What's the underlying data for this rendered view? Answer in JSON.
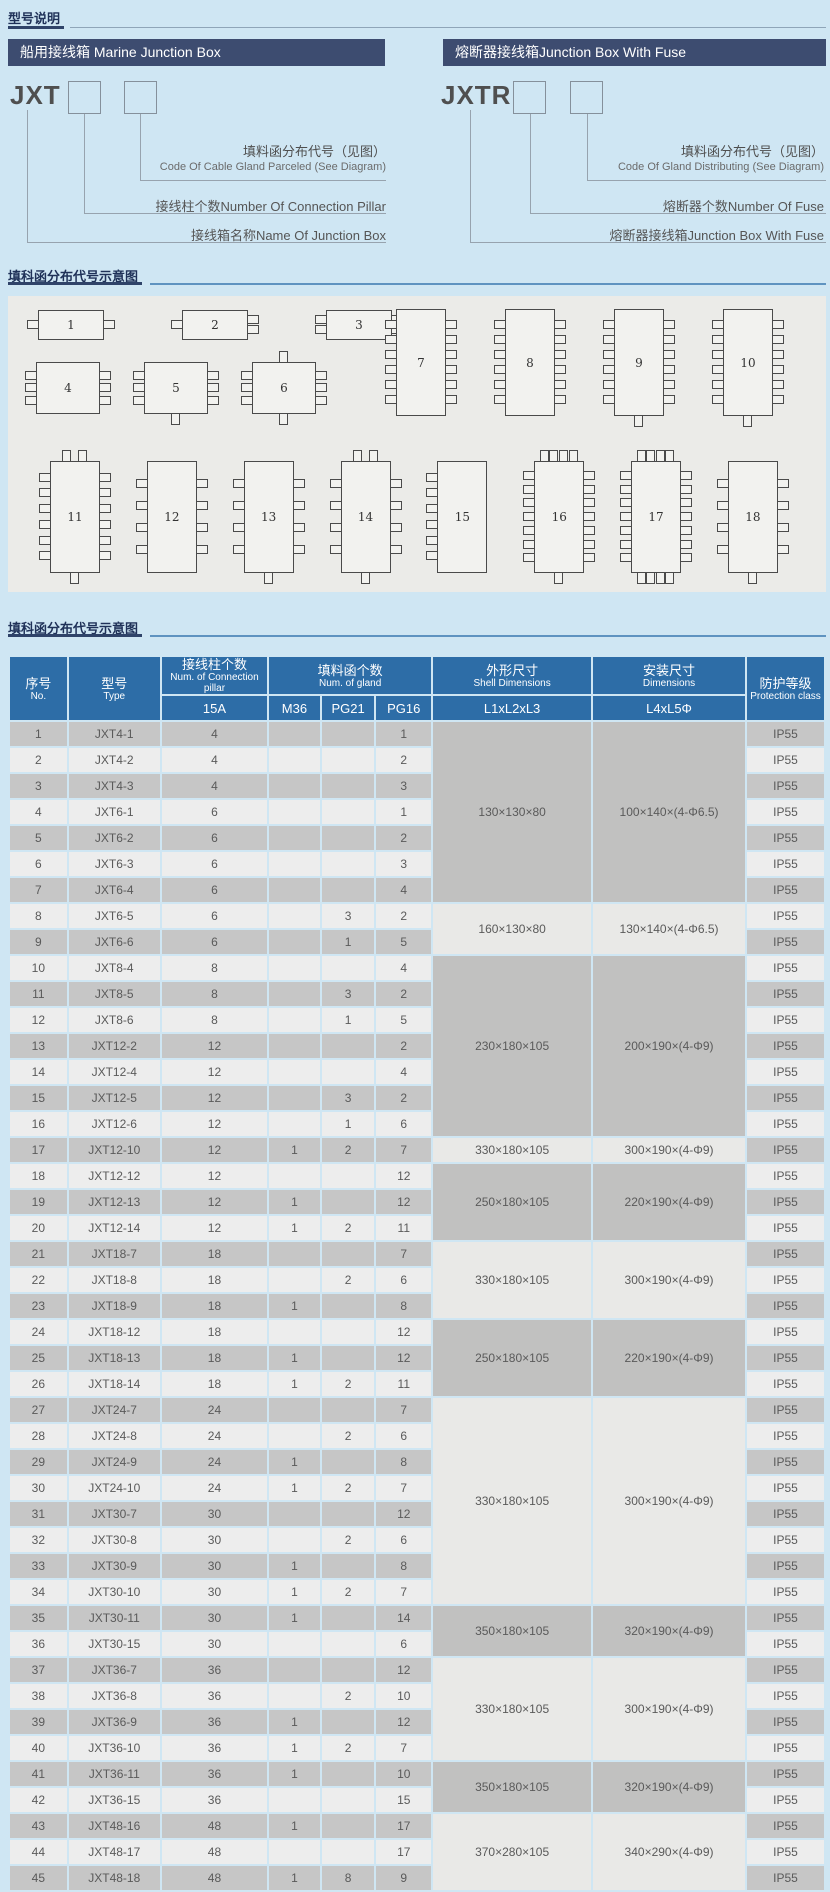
{
  "colors": {
    "page_bg": "#cfe6f3",
    "bar_navy": "#3d4c70",
    "header_blue": "#2d6da7",
    "row_odd": "#c6c6c6",
    "row_even": "#ededed",
    "block_dark": "#c1c1c0",
    "block_light": "#e9e9e7",
    "panel_gray": "#ebebe8"
  },
  "sections": {
    "model_title": "型号说明",
    "diagram_title": "填科函分布代号示意图",
    "table_title": "填科函分布代号示意图"
  },
  "marine": {
    "header": "船用接线箱 Marine Junction Box",
    "code": "JXT",
    "label1_zh": "填料函分布代号（见图）",
    "label1_en": "Code Of Cable Gland Parceled (See Diagram)",
    "label2": "接线柱个数Number Of Connection Pillar",
    "label3": "接线箱名称Name Of Junction Box"
  },
  "fuse": {
    "header": "熔断器接线箱Junction Box With Fuse",
    "code": "JXTR",
    "label1_zh": "填料函分布代号（见图）",
    "label1_en": "Code Of Gland Distributing (See Diagram)",
    "label2": "熔断器个数Number Of Fuse",
    "label3": "熔断器接线箱Junction Box With Fuse"
  },
  "diagrams": [
    {
      "n": "1",
      "size": "s",
      "l": 1,
      "r": 1,
      "t": 0,
      "b": 0
    },
    {
      "n": "2",
      "size": "s",
      "l": 1,
      "r": 2,
      "t": 0,
      "b": 0
    },
    {
      "n": "3",
      "size": "s",
      "l": 2,
      "r": 2,
      "t": 0,
      "b": 0
    },
    {
      "n": "4",
      "size": "m",
      "l": 3,
      "r": 3,
      "t": 0,
      "b": 0
    },
    {
      "n": "5",
      "size": "m",
      "l": 3,
      "r": 3,
      "t": 0,
      "b": 1
    },
    {
      "n": "6",
      "size": "m",
      "l": 3,
      "r": 3,
      "t": 1,
      "b": 1
    },
    {
      "n": "7",
      "size": "t",
      "l": 6,
      "r": 6,
      "t": 0,
      "b": 0
    },
    {
      "n": "8",
      "size": "t",
      "l": 6,
      "r": 6,
      "t": 0,
      "b": 0
    },
    {
      "n": "9",
      "size": "t",
      "l": 6,
      "r": 6,
      "t": 0,
      "b": 1
    },
    {
      "n": "10",
      "size": "t",
      "l": 6,
      "r": 6,
      "t": 0,
      "b": 1
    },
    {
      "n": "11",
      "size": "v",
      "l": 6,
      "r": 6,
      "t": 2,
      "b": 1
    },
    {
      "n": "12",
      "size": "v",
      "l": 4,
      "r": 4,
      "t": 0,
      "b": 0
    },
    {
      "n": "13",
      "size": "v",
      "l": 4,
      "r": 4,
      "t": 0,
      "b": 1
    },
    {
      "n": "14",
      "size": "v",
      "l": 4,
      "r": 4,
      "t": 2,
      "b": 1
    },
    {
      "n": "15",
      "size": "v",
      "l": 6,
      "r": 0,
      "t": 0,
      "b": 0
    },
    {
      "n": "16",
      "size": "v",
      "l": 7,
      "r": 7,
      "t": 4,
      "b": 1
    },
    {
      "n": "17",
      "size": "v",
      "l": 7,
      "r": 7,
      "t": 4,
      "b": 4
    },
    {
      "n": "18",
      "size": "v",
      "l": 4,
      "r": 4,
      "t": 0,
      "b": 1
    }
  ],
  "table": {
    "header": {
      "no_zh": "序号",
      "no_en": "No.",
      "type_zh": "型号",
      "type_en": "Type",
      "pillar_zh": "接线柱个数",
      "pillar_en": "Num. of Connection pillar",
      "pillar_sub": "15A",
      "gland_zh": "填料函个数",
      "gland_en": "Num. of gland",
      "gland_subs": [
        "M36",
        "PG21",
        "PG16"
      ],
      "shell_zh": "外形尺寸",
      "shell_en": "Shell Dimensions",
      "shell_sub": "L1xL2xL3",
      "mount_zh": "安装尺寸",
      "mount_en": "Dimensions",
      "mount_sub": "L4xL5Φ",
      "prot_zh": "防护等级",
      "prot_en": "Protection class"
    },
    "rows": [
      [
        "1",
        "JXT4-1",
        "4",
        "",
        "",
        "1",
        "IP55"
      ],
      [
        "2",
        "JXT4-2",
        "4",
        "",
        "",
        "2",
        "IP55"
      ],
      [
        "3",
        "JXT4-3",
        "4",
        "",
        "",
        "3",
        "IP55"
      ],
      [
        "4",
        "JXT6-1",
        "6",
        "",
        "",
        "1",
        "IP55"
      ],
      [
        "5",
        "JXT6-2",
        "6",
        "",
        "",
        "2",
        "IP55"
      ],
      [
        "6",
        "JXT6-3",
        "6",
        "",
        "",
        "3",
        "IP55"
      ],
      [
        "7",
        "JXT6-4",
        "6",
        "",
        "",
        "4",
        "IP55"
      ],
      [
        "8",
        "JXT6-5",
        "6",
        "",
        "3",
        "2",
        "IP55"
      ],
      [
        "9",
        "JXT6-6",
        "6",
        "",
        "1",
        "5",
        "IP55"
      ],
      [
        "10",
        "JXT8-4",
        "8",
        "",
        "",
        "4",
        "IP55"
      ],
      [
        "11",
        "JXT8-5",
        "8",
        "",
        "3",
        "2",
        "IP55"
      ],
      [
        "12",
        "JXT8-6",
        "8",
        "",
        "1",
        "5",
        "IP55"
      ],
      [
        "13",
        "JXT12-2",
        "12",
        "",
        "",
        "2",
        "IP55"
      ],
      [
        "14",
        "JXT12-4",
        "12",
        "",
        "",
        "4",
        "IP55"
      ],
      [
        "15",
        "JXT12-5",
        "12",
        "",
        "3",
        "2",
        "IP55"
      ],
      [
        "16",
        "JXT12-6",
        "12",
        "",
        "1",
        "6",
        "IP55"
      ],
      [
        "17",
        "JXT12-10",
        "12",
        "1",
        "2",
        "7",
        "IP55"
      ],
      [
        "18",
        "JXT12-12",
        "12",
        "",
        "",
        "12",
        "IP55"
      ],
      [
        "19",
        "JXT12-13",
        "12",
        "1",
        "",
        "12",
        "IP55"
      ],
      [
        "20",
        "JXT12-14",
        "12",
        "1",
        "2",
        "11",
        "IP55"
      ],
      [
        "21",
        "JXT18-7",
        "18",
        "",
        "",
        "7",
        "IP55"
      ],
      [
        "22",
        "JXT18-8",
        "18",
        "",
        "2",
        "6",
        "IP55"
      ],
      [
        "23",
        "JXT18-9",
        "18",
        "1",
        "",
        "8",
        "IP55"
      ],
      [
        "24",
        "JXT18-12",
        "18",
        "",
        "",
        "12",
        "IP55"
      ],
      [
        "25",
        "JXT18-13",
        "18",
        "1",
        "",
        "12",
        "IP55"
      ],
      [
        "26",
        "JXT18-14",
        "18",
        "1",
        "2",
        "11",
        "IP55"
      ],
      [
        "27",
        "JXT24-7",
        "24",
        "",
        "",
        "7",
        "IP55"
      ],
      [
        "28",
        "JXT24-8",
        "24",
        "",
        "2",
        "6",
        "IP55"
      ],
      [
        "29",
        "JXT24-9",
        "24",
        "1",
        "",
        "8",
        "IP55"
      ],
      [
        "30",
        "JXT24-10",
        "24",
        "1",
        "2",
        "7",
        "IP55"
      ],
      [
        "31",
        "JXT30-7",
        "30",
        "",
        "",
        "12",
        "IP55"
      ],
      [
        "32",
        "JXT30-8",
        "30",
        "",
        "2",
        "6",
        "IP55"
      ],
      [
        "33",
        "JXT30-9",
        "30",
        "1",
        "",
        "8",
        "IP55"
      ],
      [
        "34",
        "JXT30-10",
        "30",
        "1",
        "2",
        "7",
        "IP55"
      ],
      [
        "35",
        "JXT30-11",
        "30",
        "1",
        "",
        "14",
        "IP55"
      ],
      [
        "36",
        "JXT30-15",
        "30",
        "",
        "",
        "6",
        "IP55"
      ],
      [
        "37",
        "JXT36-7",
        "36",
        "",
        "",
        "12",
        "IP55"
      ],
      [
        "38",
        "JXT36-8",
        "36",
        "",
        "2",
        "10",
        "IP55"
      ],
      [
        "39",
        "JXT36-9",
        "36",
        "1",
        "",
        "12",
        "IP55"
      ],
      [
        "40",
        "JXT36-10",
        "36",
        "1",
        "2",
        "7",
        "IP55"
      ],
      [
        "41",
        "JXT36-11",
        "36",
        "1",
        "",
        "10",
        "IP55"
      ],
      [
        "42",
        "JXT36-15",
        "36",
        "",
        "",
        "15",
        "IP55"
      ],
      [
        "43",
        "JXT48-16",
        "48",
        "1",
        "",
        "17",
        "IP55"
      ],
      [
        "44",
        "JXT48-17",
        "48",
        "",
        "",
        "17",
        "IP55"
      ],
      [
        "45",
        "JXT48-18",
        "48",
        "1",
        "8",
        "9",
        "IP55"
      ]
    ],
    "dim_blocks": [
      {
        "from": 1,
        "to": 7,
        "shell": "130×130×80",
        "mount": "100×140×(4-Φ6.5)",
        "shade": "dark"
      },
      {
        "from": 8,
        "to": 9,
        "shell": "160×130×80",
        "mount": "130×140×(4-Φ6.5)",
        "shade": "light"
      },
      {
        "from": 10,
        "to": 16,
        "shell": "230×180×105",
        "mount": "200×190×(4-Φ9)",
        "shade": "dark"
      },
      {
        "from": 17,
        "to": 17,
        "shell": "330×180×105",
        "mount": "300×190×(4-Φ9)",
        "shade": "light"
      },
      {
        "from": 18,
        "to": 20,
        "shell": "250×180×105",
        "mount": "220×190×(4-Φ9)",
        "shade": "dark"
      },
      {
        "from": 21,
        "to": 23,
        "shell": "330×180×105",
        "mount": "300×190×(4-Φ9)",
        "shade": "light"
      },
      {
        "from": 24,
        "to": 26,
        "shell": "250×180×105",
        "mount": "220×190×(4-Φ9)",
        "shade": "dark"
      },
      {
        "from": 27,
        "to": 34,
        "shell": "330×180×105",
        "mount": "300×190×(4-Φ9)",
        "shade": "light"
      },
      {
        "from": 35,
        "to": 36,
        "shell": "350×180×105",
        "mount": "320×190×(4-Φ9)",
        "shade": "dark"
      },
      {
        "from": 37,
        "to": 40,
        "shell": "330×180×105",
        "mount": "300×190×(4-Φ9)",
        "shade": "light"
      },
      {
        "from": 41,
        "to": 42,
        "shell": "350×180×105",
        "mount": "320×190×(4-Φ9)",
        "shade": "dark"
      },
      {
        "from": 43,
        "to": 45,
        "shell": "370×280×105",
        "mount": "340×290×(4-Φ9)",
        "shade": "light"
      }
    ]
  }
}
